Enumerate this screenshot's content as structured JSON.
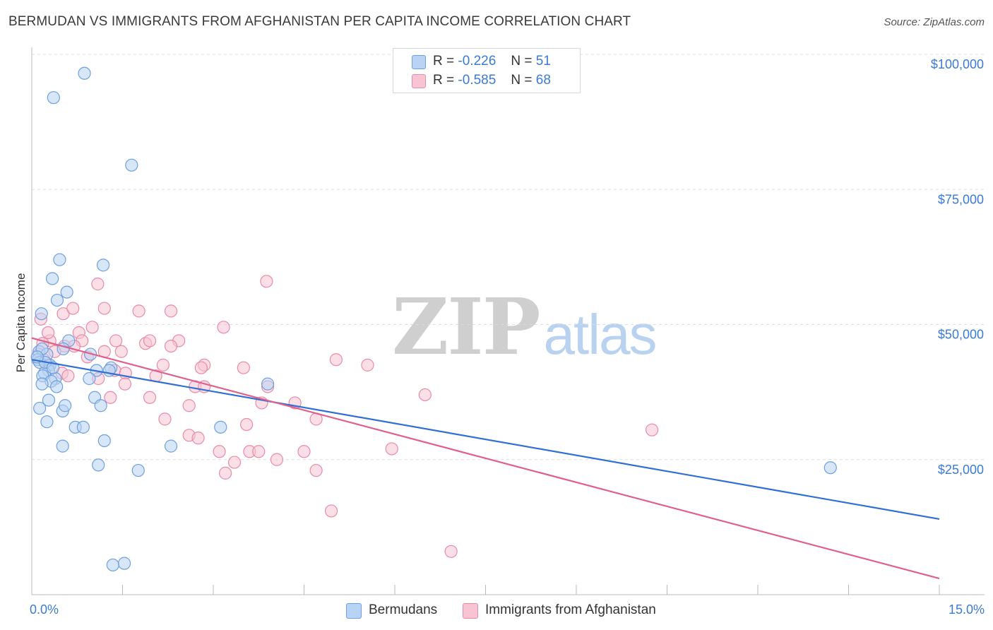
{
  "title": "BERMUDAN VS IMMIGRANTS FROM AFGHANISTAN PER CAPITA INCOME CORRELATION CHART",
  "source": "Source: ZipAtlas.com",
  "watermark": {
    "zip": "ZIP",
    "atlas": "atlas"
  },
  "legend": {
    "rows": [
      {
        "r_label": "R =",
        "r_value": "-0.226",
        "n_label": "N =",
        "n_value": "51"
      },
      {
        "r_label": "R =",
        "r_value": "-0.585",
        "n_label": "N =",
        "n_value": "68"
      }
    ]
  },
  "bottom_legend": {
    "bermudans": "Bermudans",
    "afghanistan": "Immigrants from Afghanistan"
  },
  "colors": {
    "blue_fill": "#b8d3f3",
    "blue_stroke": "#6f9fde",
    "blue_line": "#2f6fd6",
    "pink_fill": "#f8c4d4",
    "pink_stroke": "#e88aa8",
    "pink_line": "#e0608c",
    "grid": "#dcdcdc",
    "axis_label": "#3a7bd5"
  },
  "chart_data": {
    "type": "scatter",
    "title": "BERMUDAN VS IMMIGRANTS FROM AFGHANISTAN PER CAPITA INCOME CORRELATION CHART",
    "xlabel": "",
    "ylabel": "Per Capita Income",
    "xlim": [
      0,
      15
    ],
    "ylim": [
      0,
      105000
    ],
    "x_tick_labels": [
      "0.0%",
      "15.0%"
    ],
    "y_ticks": [
      25000,
      50000,
      75000,
      100000
    ],
    "y_tick_labels": [
      "$25,000",
      "$50,000",
      "$75,000",
      "$100,000"
    ],
    "series": [
      {
        "name": "Bermudans",
        "r": -0.226,
        "n": 51,
        "trend": {
          "x": [
            0,
            15
          ],
          "y": [
            43500,
            14000
          ]
        },
        "points": [
          [
            0.87,
            96500
          ],
          [
            0.36,
            92000
          ],
          [
            1.65,
            79500
          ],
          [
            0.46,
            62000
          ],
          [
            1.18,
            61000
          ],
          [
            0.34,
            58500
          ],
          [
            0.58,
            56000
          ],
          [
            0.42,
            54500
          ],
          [
            0.16,
            52000
          ],
          [
            0.61,
            47000
          ],
          [
            0.52,
            45500
          ],
          [
            0.12,
            45000
          ],
          [
            0.1,
            43500
          ],
          [
            0.13,
            43000
          ],
          [
            0.25,
            44500
          ],
          [
            0.97,
            44500
          ],
          [
            0.3,
            42500
          ],
          [
            0.28,
            41500
          ],
          [
            0.21,
            41000
          ],
          [
            1.07,
            41500
          ],
          [
            0.18,
            40500
          ],
          [
            0.95,
            40000
          ],
          [
            1.31,
            42000
          ],
          [
            1.28,
            41500
          ],
          [
            0.39,
            40000
          ],
          [
            0.32,
            39500
          ],
          [
            0.17,
            39000
          ],
          [
            0.41,
            38500
          ],
          [
            0.51,
            34000
          ],
          [
            0.13,
            34500
          ],
          [
            0.28,
            36000
          ],
          [
            1.04,
            36500
          ],
          [
            0.55,
            35000
          ],
          [
            1.14,
            35000
          ],
          [
            0.25,
            32000
          ],
          [
            0.72,
            31000
          ],
          [
            0.85,
            31000
          ],
          [
            1.2,
            28500
          ],
          [
            0.51,
            27500
          ],
          [
            2.3,
            27500
          ],
          [
            3.12,
            31000
          ],
          [
            1.1,
            24000
          ],
          [
            1.76,
            23000
          ],
          [
            3.9,
            39000
          ],
          [
            1.34,
            5500
          ],
          [
            1.53,
            5800
          ],
          [
            13.2,
            23500
          ],
          [
            0.17,
            45500
          ],
          [
            0.22,
            43000
          ],
          [
            0.35,
            42000
          ],
          [
            0.09,
            44000
          ]
        ]
      },
      {
        "name": "Immigrants from Afghanistan",
        "r": -0.585,
        "n": 68,
        "trend": {
          "x": [
            0,
            15
          ],
          "y": [
            47500,
            3000
          ]
        },
        "points": [
          [
            0.15,
            51000
          ],
          [
            0.52,
            52000
          ],
          [
            0.68,
            53000
          ],
          [
            1.09,
            57500
          ],
          [
            1.2,
            53000
          ],
          [
            1.77,
            52500
          ],
          [
            2.3,
            52500
          ],
          [
            3.88,
            58000
          ],
          [
            3.17,
            49500
          ],
          [
            0.78,
            48500
          ],
          [
            1.0,
            49500
          ],
          [
            0.83,
            47000
          ],
          [
            0.3,
            47000
          ],
          [
            0.54,
            46000
          ],
          [
            0.12,
            44500
          ],
          [
            0.2,
            43500
          ],
          [
            1.39,
            47000
          ],
          [
            1.88,
            46500
          ],
          [
            2.43,
            47000
          ],
          [
            0.7,
            46000
          ],
          [
            1.2,
            45000
          ],
          [
            1.48,
            45000
          ],
          [
            2.3,
            46000
          ],
          [
            1.95,
            47000
          ],
          [
            0.27,
            42500
          ],
          [
            0.5,
            41000
          ],
          [
            0.6,
            40500
          ],
          [
            1.37,
            41500
          ],
          [
            1.55,
            41000
          ],
          [
            2.17,
            42500
          ],
          [
            2.85,
            42500
          ],
          [
            2.8,
            42000
          ],
          [
            3.5,
            42000
          ],
          [
            5.03,
            43500
          ],
          [
            5.55,
            42500
          ],
          [
            1.3,
            36500
          ],
          [
            1.54,
            39000
          ],
          [
            2.05,
            40500
          ],
          [
            2.7,
            38500
          ],
          [
            3.9,
            38500
          ],
          [
            1.95,
            36500
          ],
          [
            2.6,
            35000
          ],
          [
            3.8,
            35500
          ],
          [
            4.35,
            35500
          ],
          [
            4.7,
            32500
          ],
          [
            2.2,
            32500
          ],
          [
            3.55,
            31500
          ],
          [
            2.6,
            29500
          ],
          [
            2.75,
            29000
          ],
          [
            3.1,
            26500
          ],
          [
            3.35,
            24500
          ],
          [
            3.6,
            26500
          ],
          [
            3.75,
            26500
          ],
          [
            4.05,
            25000
          ],
          [
            4.5,
            26500
          ],
          [
            4.7,
            23000
          ],
          [
            3.2,
            22500
          ],
          [
            5.95,
            27000
          ],
          [
            4.95,
            15500
          ],
          [
            6.5,
            37000
          ],
          [
            10.25,
            30500
          ],
          [
            6.93,
            8000
          ],
          [
            0.92,
            44000
          ],
          [
            1.1,
            40000
          ],
          [
            0.38,
            45000
          ],
          [
            0.18,
            46500
          ],
          [
            2.85,
            38500
          ],
          [
            0.27,
            48500
          ]
        ]
      }
    ]
  }
}
